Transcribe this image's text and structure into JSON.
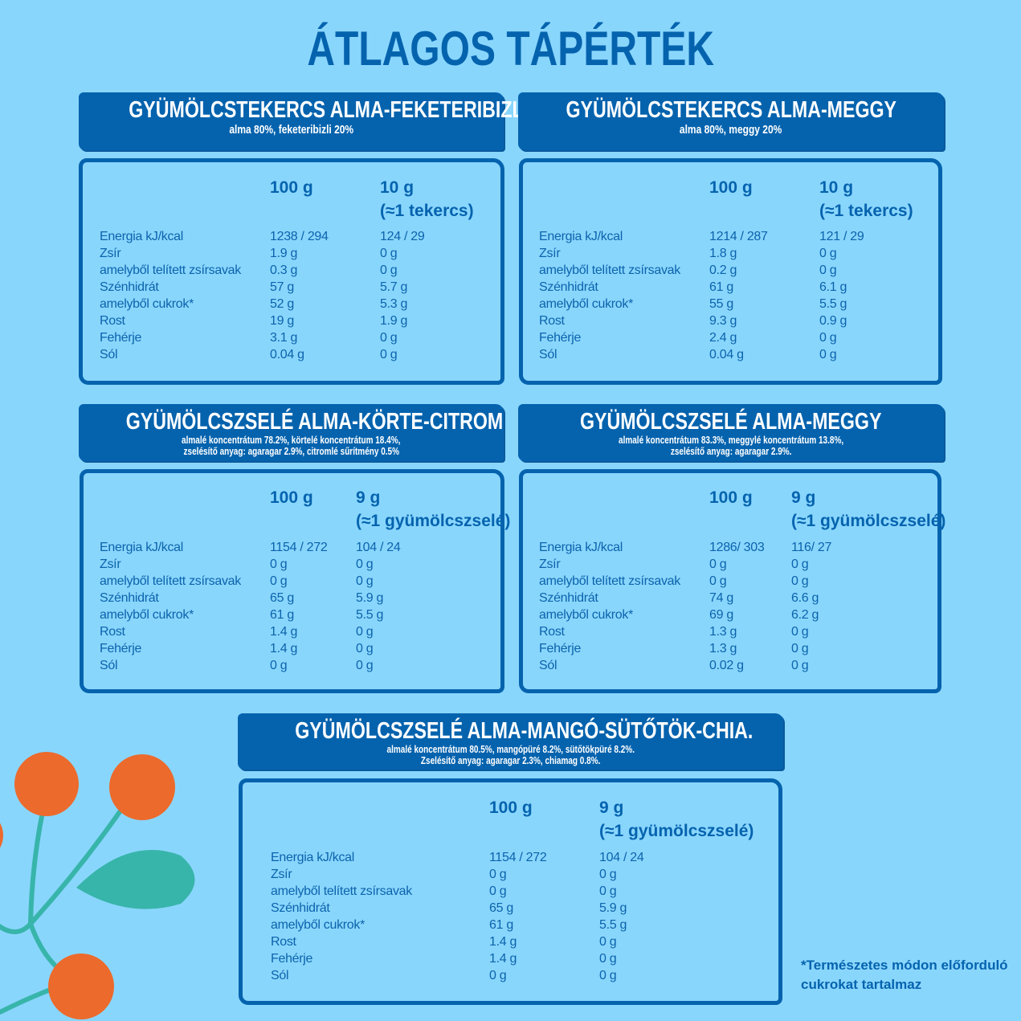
{
  "title": "ÁTLAGOS TÁPÉRTÉK",
  "colors": {
    "background": "#89d6fd",
    "primary": "#0563ae",
    "orange": "#ec6a2b",
    "teal": "#38b5aa"
  },
  "row_labels": [
    "Energia kJ/kcal",
    "Zsír",
    "amelyből telített zsírsavak",
    "Szénhidrát",
    "amelyből cukrok*",
    "Rost",
    "Fehérje",
    "Sól"
  ],
  "panels": [
    {
      "name": "GYÜMÖLCSTEKERCS ALMA-FEKETERIBIZLI",
      "sub": [
        "alma 80%, feketeribizli 20%"
      ],
      "col1": "100 g",
      "col2": "10 g",
      "col2b": "(≈1 tekercs)",
      "v1": [
        "1238 / 294",
        "1.9 g",
        "0.3 g",
        "57 g",
        "52 g",
        "19 g",
        "3.1 g",
        "0.04 g"
      ],
      "v2": [
        "124 / 29",
        "0 g",
        "0 g",
        "5.7 g",
        "5.3 g",
        "1.9 g",
        "0 g",
        "0 g"
      ]
    },
    {
      "name": "GYÜMÖLCSTEKERCS ALMA-MEGGY",
      "sub": [
        "alma 80%, meggy 20%"
      ],
      "col1": "100 g",
      "col2": "10 g",
      "col2b": "(≈1 tekercs)",
      "v1": [
        "1214 / 287",
        "1.8 g",
        "0.2 g",
        "61 g",
        "55 g",
        "9.3 g",
        "2.4 g",
        "0.04 g"
      ],
      "v2": [
        "121 / 29",
        "0 g",
        "0 g",
        "6.1 g",
        "5.5 g",
        "0.9 g",
        "0 g",
        "0 g"
      ]
    },
    {
      "name": "GYÜMÖLCSZSELÉ ALMA-KÖRTE-CITROM",
      "sub": [
        "almalé koncentrátum 78.2%, körtelé koncentrátum 18.4%,",
        "zselésítő anyag: agaragar 2.9%, citromlé sűrítmény 0.5%"
      ],
      "col1": "100 g",
      "col2": "9 g",
      "col2b": "(≈1 gyümölcszselé)",
      "v1": [
        "1154 / 272",
        "0 g",
        "0 g",
        "65 g",
        "61 g",
        "1.4 g",
        "1.4 g",
        "0 g"
      ],
      "v2": [
        "104 / 24",
        "0 g",
        "0 g",
        "5.9 g",
        "5.5 g",
        "0 g",
        "0 g",
        "0 g"
      ]
    },
    {
      "name": "GYÜMÖLCSZSELÉ ALMA-MEGGY",
      "sub": [
        "almalé koncentrátum 83.3%, meggylé koncentrátum 13.8%,",
        "zselésítő anyag: agaragar 2.9%."
      ],
      "col1": "100 g",
      "col2": "9 g",
      "col2b": "(≈1 gyümölcszselé)",
      "v1": [
        "1286/ 303",
        "0 g",
        "0 g",
        "74 g",
        "69 g",
        "1.3 g",
        "1.3 g",
        "0.02 g"
      ],
      "v2": [
        "116/ 27",
        "0 g",
        "0 g",
        "6.6 g",
        "6.2 g",
        "0 g",
        "0 g",
        "0 g"
      ]
    },
    {
      "name": "GYÜMÖLCSZSELÉ ALMA-MANGÓ-SÜTŐTÖK-CHIA.",
      "sub": [
        "almalé koncentrátum 80.5%, mangópüré 8.2%, sütőtökpüré 8.2%.",
        "Zselésítő anyag: agaragar 2.3%, chiamag 0.8%."
      ],
      "col1": "100 g",
      "col2": "9 g",
      "col2b": "(≈1 gyümölcszselé)",
      "v1": [
        "1154 / 272",
        "0 g",
        "0 g",
        "65 g",
        "61 g",
        "1.4 g",
        "1.4 g",
        "0 g"
      ],
      "v2": [
        "104 / 24",
        "0 g",
        "0 g",
        "5.9 g",
        "5.5 g",
        "0 g",
        "0 g",
        "0 g"
      ]
    }
  ],
  "footnote": [
    "*Természetes módon előforduló",
    "cukrokat tartalmaz"
  ]
}
